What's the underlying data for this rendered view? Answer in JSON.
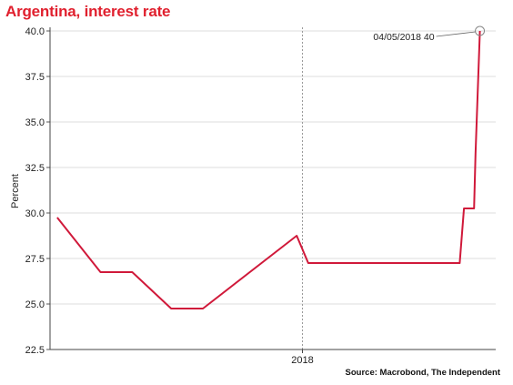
{
  "chart_data": {
    "type": "line",
    "title": "Argentina, interest rate",
    "ylabel": "Percent",
    "xlabel": "",
    "ylim": [
      22.5,
      40.0
    ],
    "yticks": [
      "22.5",
      "25.0",
      "27.5",
      "30.0",
      "32.5",
      "35.0",
      "37.5",
      "40.0"
    ],
    "xticks": [
      {
        "label": "2018",
        "date": "2018-01-01"
      }
    ],
    "x_range": [
      "2017-07-10",
      "2018-05-15"
    ],
    "grid": true,
    "series": [
      {
        "color": "#d0193a",
        "points": [
          {
            "x": "2017-07-15",
            "y": 29.75
          },
          {
            "x": "2017-08-14",
            "y": 26.75
          },
          {
            "x": "2017-09-05",
            "y": 26.75
          },
          {
            "x": "2017-10-02",
            "y": 24.75
          },
          {
            "x": "2017-10-24",
            "y": 24.75
          },
          {
            "x": "2017-12-28",
            "y": 28.75
          },
          {
            "x": "2018-01-05",
            "y": 27.25
          },
          {
            "x": "2018-04-20",
            "y": 27.25
          },
          {
            "x": "2018-04-23",
            "y": 30.25
          },
          {
            "x": "2018-04-30",
            "y": 30.25
          },
          {
            "x": "2018-05-01",
            "y": 33.25
          },
          {
            "x": "2018-05-04",
            "y": 40.0
          }
        ]
      }
    ],
    "annotation": {
      "text": "04/05/2018 40",
      "x": "2018-05-04",
      "y": 40.0
    }
  },
  "source": "Source: Macrobond, The Independent"
}
